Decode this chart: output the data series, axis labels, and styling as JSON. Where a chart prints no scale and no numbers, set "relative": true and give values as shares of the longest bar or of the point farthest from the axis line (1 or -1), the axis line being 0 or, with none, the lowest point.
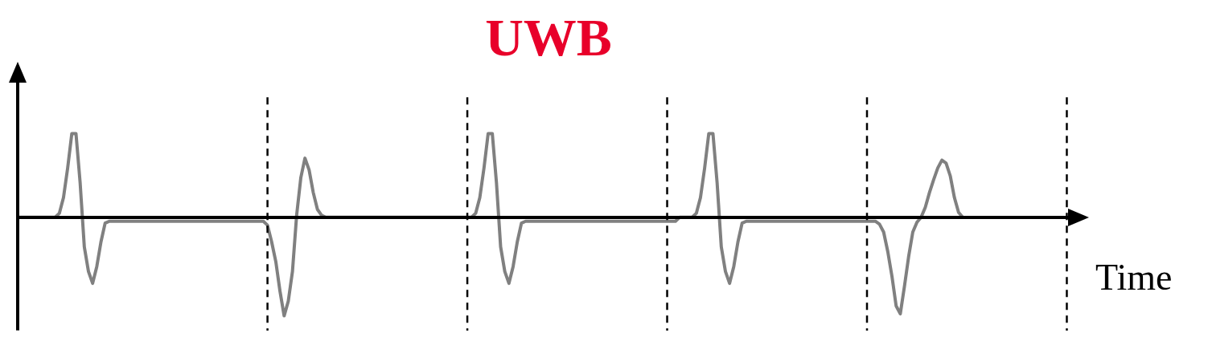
{
  "chart_data": {
    "type": "line",
    "title": "UWB",
    "xlabel": "Time",
    "relative": true,
    "legend": false,
    "grid": "x",
    "categories": [
      null,
      null,
      null,
      null,
      null,
      null,
      null,
      null,
      null,
      null,
      null,
      null,
      null,
      null,
      null,
      null,
      null,
      null,
      null,
      null,
      null,
      null,
      null,
      null,
      null,
      null,
      null,
      null,
      null,
      null,
      null,
      null,
      null,
      null,
      null,
      null,
      null,
      null,
      null,
      null,
      null,
      null,
      null,
      null,
      null,
      null,
      null,
      null,
      null,
      null,
      null,
      null,
      null,
      null,
      null,
      null,
      null,
      null,
      null,
      null,
      null,
      null,
      null,
      null,
      null,
      null,
      null,
      null,
      null,
      null,
      null,
      null,
      null,
      null,
      null,
      null,
      null,
      null,
      null,
      null,
      null,
      null,
      null,
      null,
      null,
      null,
      null,
      null,
      null,
      null,
      null,
      null,
      null,
      null,
      null,
      null,
      null,
      null,
      null,
      null,
      null,
      null,
      null,
      null,
      null,
      null,
      null,
      null,
      null,
      null,
      null,
      null,
      null,
      null,
      null,
      null,
      null,
      null,
      null,
      null,
      null,
      null,
      null,
      null,
      null,
      null,
      null,
      null,
      null,
      null,
      null,
      null,
      null,
      null,
      null,
      null,
      null,
      null,
      null,
      null,
      null,
      null,
      null,
      null,
      null,
      null,
      null,
      null,
      null,
      null,
      null,
      null,
      null,
      null,
      null,
      null,
      null,
      null,
      null,
      null,
      null,
      null,
      null,
      null,
      null,
      null,
      null,
      null,
      null,
      null,
      null,
      null,
      null,
      null,
      null,
      null,
      null,
      null,
      null,
      null,
      null,
      null,
      null,
      null,
      null,
      null,
      null,
      null,
      null,
      null,
      null,
      null,
      null,
      null,
      null,
      null,
      null,
      null,
      null,
      null,
      null,
      null,
      null,
      null,
      null,
      null,
      null,
      null,
      null,
      null,
      null,
      null,
      null,
      null,
      null,
      null,
      null,
      null,
      null,
      null,
      null,
      null,
      null,
      null,
      null,
      null,
      null,
      null,
      null,
      null,
      null,
      null,
      null,
      null,
      null,
      null,
      null,
      null,
      null,
      null,
      null,
      null,
      null,
      null,
      null,
      null,
      null,
      null,
      null,
      null,
      null,
      null,
      null,
      null,
      null,
      null
    ],
    "series": [
      {
        "color": "#808080",
        "values": [
          0,
          0,
          0,
          0,
          0,
          0,
          0,
          0,
          0,
          0,
          0.04,
          0.2,
          0.5,
          0.85,
          0.85,
          0.35,
          -0.3,
          -0.55,
          -0.67,
          -0.5,
          -0.25,
          -0.06,
          -0.04,
          -0.04,
          -0.04,
          -0.04,
          -0.04,
          -0.04,
          -0.04,
          -0.04,
          -0.04,
          -0.04,
          -0.04,
          -0.04,
          -0.04,
          -0.04,
          -0.04,
          -0.04,
          -0.04,
          -0.04,
          -0.04,
          -0.04,
          -0.04,
          -0.04,
          -0.04,
          -0.04,
          -0.04,
          -0.04,
          -0.04,
          -0.04,
          -0.04,
          -0.04,
          -0.04,
          -0.04,
          -0.04,
          -0.04,
          -0.04,
          -0.04,
          -0.04,
          -0.04,
          -0.08,
          -0.25,
          -0.45,
          -0.75,
          -1,
          -0.85,
          -0.55,
          0.02,
          0.4,
          0.6,
          0.48,
          0.25,
          0.08,
          0.02,
          0,
          0,
          0,
          0,
          0,
          0,
          0,
          0,
          0,
          0,
          0,
          0,
          0,
          0,
          0,
          0,
          0,
          0,
          0,
          0,
          0,
          0,
          0,
          0,
          0,
          0,
          0,
          0,
          0,
          0,
          0,
          0,
          0,
          0,
          0,
          0,
          0.04,
          0.2,
          0.5,
          0.85,
          0.85,
          0.35,
          -0.3,
          -0.55,
          -0.67,
          -0.5,
          -0.25,
          -0.06,
          -0.04,
          -0.04,
          -0.04,
          -0.04,
          -0.04,
          -0.04,
          -0.04,
          -0.04,
          -0.04,
          -0.04,
          -0.04,
          -0.04,
          -0.04,
          -0.04,
          -0.04,
          -0.04,
          -0.04,
          -0.04,
          -0.04,
          -0.04,
          -0.04,
          -0.04,
          -0.04,
          -0.04,
          -0.04,
          -0.04,
          -0.04,
          -0.04,
          -0.04,
          -0.04,
          -0.04,
          -0.04,
          -0.04,
          -0.04,
          -0.04,
          -0.04,
          -0.04,
          0,
          0,
          0,
          0,
          0.04,
          0.2,
          0.5,
          0.85,
          0.85,
          0.35,
          -0.3,
          -0.55,
          -0.67,
          -0.5,
          -0.25,
          -0.06,
          -0.04,
          -0.04,
          -0.04,
          -0.04,
          -0.04,
          -0.04,
          -0.04,
          -0.04,
          -0.04,
          -0.04,
          -0.04,
          -0.04,
          -0.04,
          -0.04,
          -0.04,
          -0.04,
          -0.04,
          -0.04,
          -0.04,
          -0.04,
          -0.04,
          -0.04,
          -0.04,
          -0.04,
          -0.04,
          -0.04,
          -0.04,
          -0.04,
          -0.04,
          -0.04,
          -0.04,
          -0.04,
          -0.07,
          -0.15,
          -0.35,
          -0.6,
          -0.9,
          -0.98,
          -0.7,
          -0.4,
          -0.15,
          -0.05,
          0,
          0.1,
          0.25,
          0.38,
          0.5,
          0.58,
          0.55,
          0.42,
          0.2,
          0.05,
          0,
          null,
          null,
          null,
          null,
          null,
          null,
          null,
          null,
          null,
          null,
          null,
          null,
          null,
          null,
          null,
          null,
          null,
          null,
          null,
          null,
          null,
          null,
          null,
          null,
          null,
          null,
          null,
          null
        ]
      }
    ]
  }
}
